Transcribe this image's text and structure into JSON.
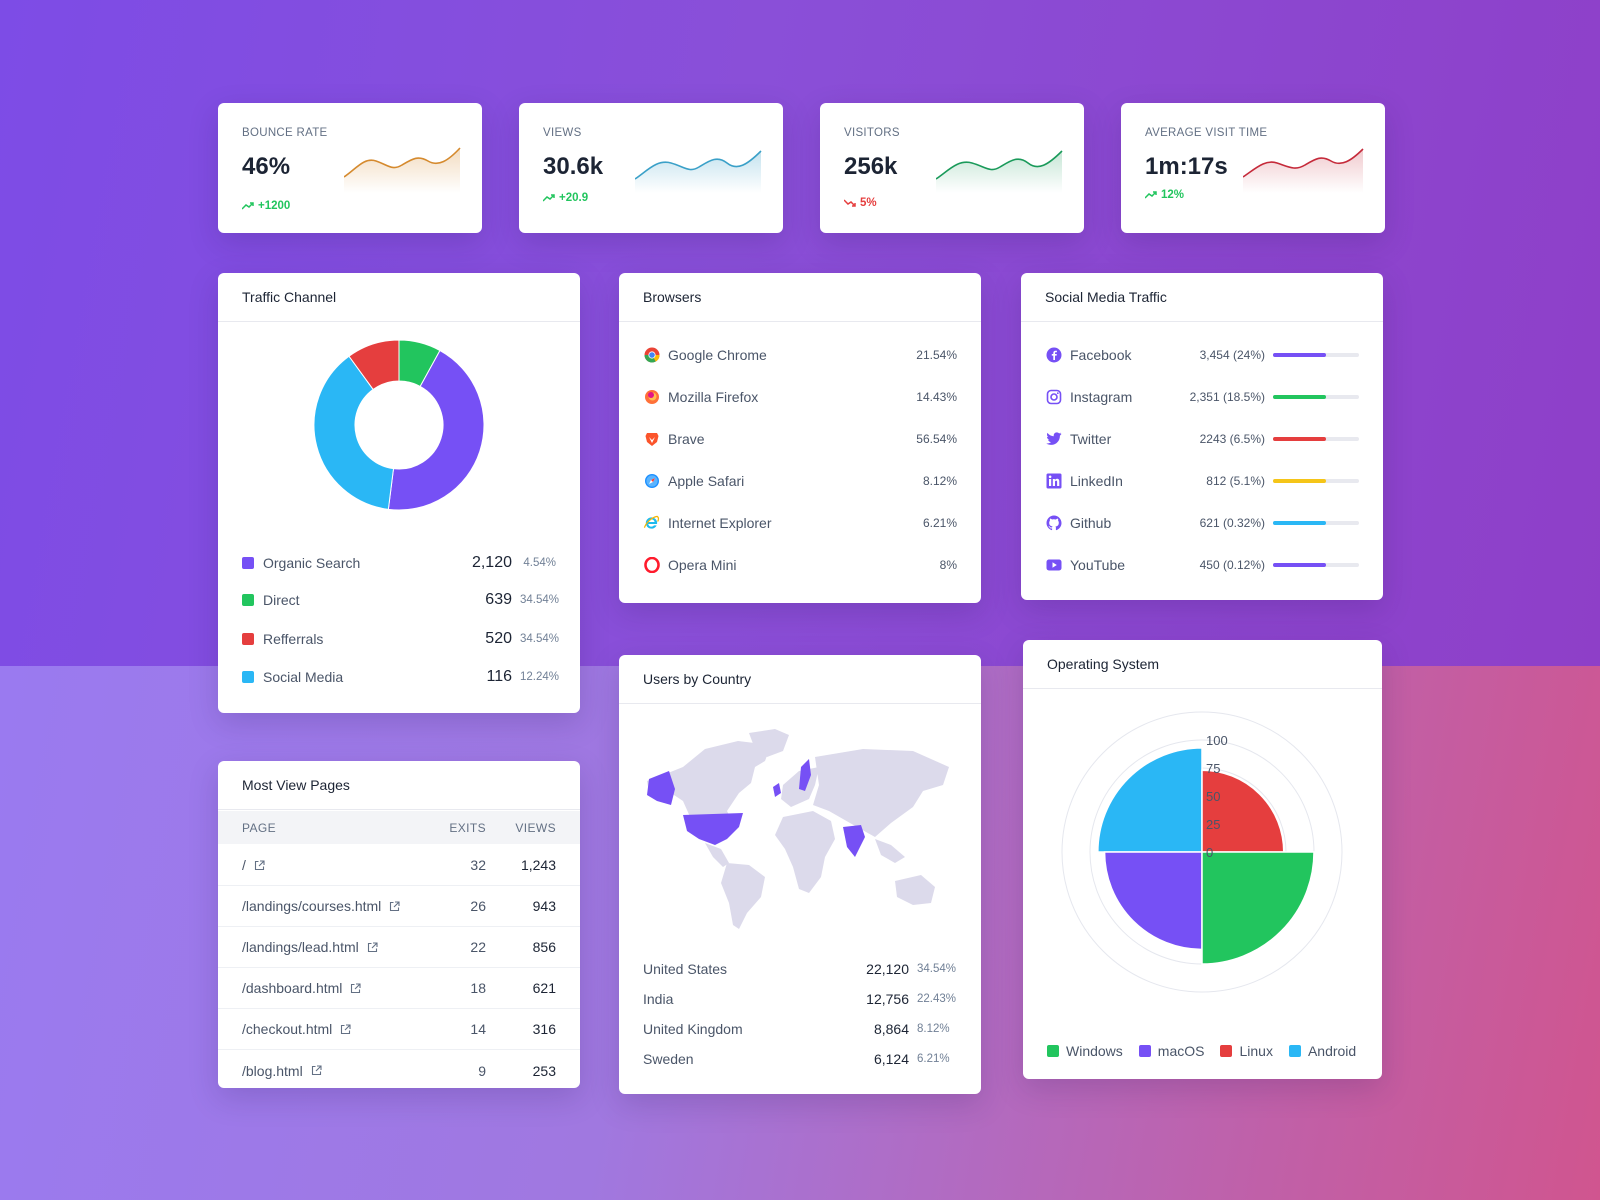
{
  "stats": [
    {
      "label": "BOUNCE RATE",
      "value": "46%",
      "delta": "+1200",
      "trend": "up",
      "color": "#d58a2e"
    },
    {
      "label": "VIEWS",
      "value": "30.6k",
      "delta": "+20.9",
      "trend": "up",
      "color": "#3aa0c8"
    },
    {
      "label": "VISITORS",
      "value": "256k",
      "delta": "5%",
      "trend": "down",
      "color": "#1a9a5a"
    },
    {
      "label": "AVERAGE VISIT TIME",
      "value": "1m:17s",
      "delta": "12%",
      "trend": "up",
      "color": "#c52a3a"
    }
  ],
  "traffic": {
    "title": "Traffic Channel",
    "items": [
      {
        "name": "Organic Search",
        "value": "2,120",
        "pct": "4.54%",
        "color": "#7650f5"
      },
      {
        "name": "Direct",
        "value": "639",
        "pct": "34.54%",
        "color": "#22c55e"
      },
      {
        "name": "Refferrals",
        "value": "520",
        "pct": "34.54%",
        "color": "#e53e3e"
      },
      {
        "name": "Social Media",
        "value": "116",
        "pct": "12.24%",
        "color": "#2ab7f5"
      }
    ]
  },
  "browsers": {
    "title": "Browsers",
    "items": [
      {
        "name": "Google Chrome",
        "pct": "21.54%",
        "icon": "chrome-icon"
      },
      {
        "name": "Mozilla Firefox",
        "pct": "14.43%",
        "icon": "firefox-icon"
      },
      {
        "name": "Brave",
        "pct": "56.54%",
        "icon": "brave-icon"
      },
      {
        "name": "Apple Safari",
        "pct": "8.12%",
        "icon": "safari-icon"
      },
      {
        "name": "Internet Explorer",
        "pct": "6.21%",
        "icon": "ie-icon"
      },
      {
        "name": "Opera Mini",
        "pct": "8%",
        "icon": "opera-icon"
      }
    ]
  },
  "social": {
    "title": "Social Media Traffic",
    "items": [
      {
        "name": "Facebook",
        "stat": "3,454 (24%)",
        "fill": 0.62,
        "color": "#7650f5",
        "icon": "facebook-icon"
      },
      {
        "name": "Instagram",
        "stat": "2,351 (18.5%)",
        "fill": 0.62,
        "color": "#22c55e",
        "icon": "instagram-icon"
      },
      {
        "name": "Twitter",
        "stat": "2243 (6.5%)",
        "fill": 0.62,
        "color": "#e53e3e",
        "icon": "twitter-icon"
      },
      {
        "name": "LinkedIn",
        "stat": "812 (5.1%)",
        "fill": 0.62,
        "color": "#f5c518",
        "icon": "linkedin-icon"
      },
      {
        "name": "Github",
        "stat": "621 (0.32%)",
        "fill": 0.62,
        "color": "#2ab7f5",
        "icon": "github-icon"
      },
      {
        "name": "YouTube",
        "stat": "450 (0.12%)",
        "fill": 0.62,
        "color": "#7650f5",
        "icon": "youtube-icon"
      }
    ]
  },
  "pages": {
    "title": "Most View Pages",
    "headers": {
      "page": "PAGE",
      "exits": "EXITS",
      "views": "VIEWS"
    },
    "rows": [
      {
        "page": "/",
        "exits": "32",
        "views": "1,243"
      },
      {
        "page": "/landings/courses.html",
        "exits": "26",
        "views": "943"
      },
      {
        "page": "/landings/lead.html",
        "exits": "22",
        "views": "856"
      },
      {
        "page": "/dashboard.html",
        "exits": "18",
        "views": "621"
      },
      {
        "page": "/checkout.html",
        "exits": "14",
        "views": "316"
      },
      {
        "page": "/blog.html",
        "exits": "9",
        "views": "253"
      }
    ]
  },
  "countries": {
    "title": "Users by Country",
    "rows": [
      {
        "name": "United States",
        "value": "22,120",
        "pct": "34.54%"
      },
      {
        "name": "India",
        "value": "12,756",
        "pct": "22.43%"
      },
      {
        "name": "United Kingdom",
        "value": "8,864",
        "pct": "8.12%"
      },
      {
        "name": "Sweden",
        "value": "6,124",
        "pct": "6.21%"
      }
    ],
    "map_colors": {
      "base": "#dcdaeb",
      "highlight": "#7650f5"
    }
  },
  "os": {
    "title": "Operating System",
    "ticks": [
      "100",
      "75",
      "50",
      "25",
      "0"
    ],
    "items": [
      {
        "name": "Windows",
        "color": "#22c55e"
      },
      {
        "name": "macOS",
        "color": "#7650f5"
      },
      {
        "name": "Linux",
        "color": "#e53e3e"
      },
      {
        "name": "Android",
        "color": "#2ab7f5"
      }
    ]
  },
  "chart_data": [
    {
      "type": "pie",
      "categories": [
        "Organic Search",
        "Direct",
        "Refferrals",
        "Social Media"
      ],
      "values": [
        2120,
        639,
        520,
        116
      ],
      "colors": [
        "#7650f5",
        "#22c55e",
        "#e53e3e",
        "#2ab7f5"
      ],
      "visual_share": [
        0.44,
        0.08,
        0.1,
        0.38
      ]
    },
    {
      "type": "polar-area",
      "categories": [
        "Windows",
        "macOS",
        "Linux",
        "Android"
      ],
      "values": [
        100,
        87,
        73,
        93
      ],
      "rmax": 100,
      "colors": [
        "#22c55e",
        "#7650f5",
        "#e53e3e",
        "#2ab7f5"
      ]
    }
  ]
}
